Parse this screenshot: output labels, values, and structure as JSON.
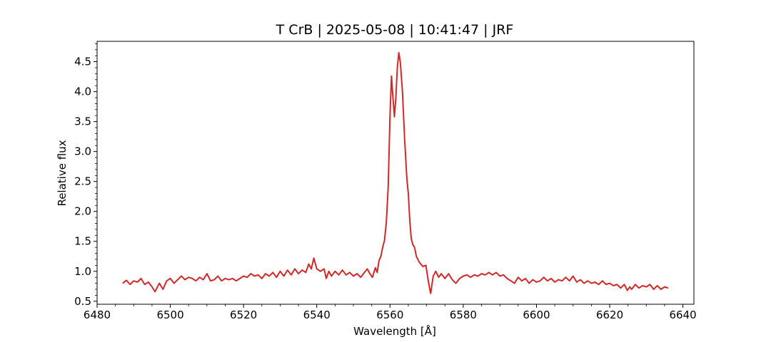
{
  "chart_data": {
    "type": "line",
    "title": "T CrB | 2025-05-08 | 10:41:47 | JRF",
    "xlabel": "Wavelength [Å]",
    "ylabel": "Relative flux",
    "xlim": [
      6480,
      6643
    ],
    "ylim": [
      0.45,
      4.84
    ],
    "xticks": [
      6480,
      6500,
      6520,
      6540,
      6560,
      6580,
      6600,
      6620,
      6640
    ],
    "yticks": [
      0.5,
      1.0,
      1.5,
      2.0,
      2.5,
      3.0,
      3.5,
      4.0,
      4.5
    ],
    "xtick_labels": [
      "6480",
      "6500",
      "6520",
      "6540",
      "6560",
      "6580",
      "6600",
      "6620",
      "6640"
    ],
    "ytick_labels": [
      "0.5",
      "1.0",
      "1.5",
      "2.0",
      "2.5",
      "3.0",
      "3.5",
      "4.0",
      "4.5"
    ],
    "grid": false,
    "series": [
      {
        "color": "#d62728",
        "points": [
          [
            6487.0,
            0.8
          ],
          [
            6488.0,
            0.85
          ],
          [
            6489.0,
            0.78
          ],
          [
            6490.0,
            0.84
          ],
          [
            6491.0,
            0.82
          ],
          [
            6492.0,
            0.88
          ],
          [
            6493.0,
            0.78
          ],
          [
            6494.0,
            0.82
          ],
          [
            6495.0,
            0.74
          ],
          [
            6495.8,
            0.66
          ],
          [
            6497.0,
            0.8
          ],
          [
            6498.0,
            0.7
          ],
          [
            6499.0,
            0.84
          ],
          [
            6500.0,
            0.88
          ],
          [
            6501.0,
            0.8
          ],
          [
            6502.0,
            0.86
          ],
          [
            6503.0,
            0.92
          ],
          [
            6504.0,
            0.86
          ],
          [
            6505.0,
            0.9
          ],
          [
            6506.0,
            0.88
          ],
          [
            6507.0,
            0.84
          ],
          [
            6508.0,
            0.9
          ],
          [
            6509.0,
            0.86
          ],
          [
            6510.0,
            0.96
          ],
          [
            6511.0,
            0.84
          ],
          [
            6512.0,
            0.86
          ],
          [
            6513.0,
            0.92
          ],
          [
            6514.0,
            0.84
          ],
          [
            6515.0,
            0.88
          ],
          [
            6516.0,
            0.86
          ],
          [
            6517.0,
            0.88
          ],
          [
            6518.0,
            0.84
          ],
          [
            6519.0,
            0.88
          ],
          [
            6520.0,
            0.92
          ],
          [
            6521.0,
            0.9
          ],
          [
            6522.0,
            0.96
          ],
          [
            6523.0,
            0.92
          ],
          [
            6524.0,
            0.94
          ],
          [
            6525.0,
            0.88
          ],
          [
            6526.0,
            0.96
          ],
          [
            6527.0,
            0.92
          ],
          [
            6528.0,
            0.98
          ],
          [
            6529.0,
            0.9
          ],
          [
            6530.0,
            1.0
          ],
          [
            6531.0,
            0.92
          ],
          [
            6532.0,
            1.02
          ],
          [
            6533.0,
            0.94
          ],
          [
            6534.0,
            1.04
          ],
          [
            6535.0,
            0.96
          ],
          [
            6536.0,
            1.02
          ],
          [
            6537.0,
            0.98
          ],
          [
            6537.8,
            1.12
          ],
          [
            6538.5,
            1.04
          ],
          [
            6539.2,
            1.22
          ],
          [
            6540.0,
            1.04
          ],
          [
            6541.0,
            1.0
          ],
          [
            6542.0,
            1.04
          ],
          [
            6542.6,
            0.88
          ],
          [
            6543.3,
            1.0
          ],
          [
            6544.0,
            0.92
          ],
          [
            6545.0,
            1.0
          ],
          [
            6546.0,
            0.94
          ],
          [
            6547.0,
            1.02
          ],
          [
            6548.0,
            0.94
          ],
          [
            6549.0,
            0.98
          ],
          [
            6550.0,
            0.92
          ],
          [
            6551.0,
            0.96
          ],
          [
            6552.0,
            0.9
          ],
          [
            6553.0,
            0.98
          ],
          [
            6553.8,
            1.04
          ],
          [
            6554.5,
            0.96
          ],
          [
            6555.2,
            0.9
          ],
          [
            6556.0,
            1.06
          ],
          [
            6556.5,
            0.98
          ],
          [
            6557.0,
            1.18
          ],
          [
            6557.5,
            1.25
          ],
          [
            6558.0,
            1.4
          ],
          [
            6558.5,
            1.52
          ],
          [
            6559.0,
            1.82
          ],
          [
            6559.5,
            2.4
          ],
          [
            6560.0,
            3.6
          ],
          [
            6560.4,
            4.26
          ],
          [
            6560.8,
            3.9
          ],
          [
            6561.2,
            3.58
          ],
          [
            6561.6,
            3.9
          ],
          [
            6562.0,
            4.4
          ],
          [
            6562.4,
            4.65
          ],
          [
            6562.8,
            4.5
          ],
          [
            6563.4,
            4.0
          ],
          [
            6564.0,
            3.2
          ],
          [
            6564.6,
            2.55
          ],
          [
            6565.0,
            2.3
          ],
          [
            6565.4,
            1.85
          ],
          [
            6565.8,
            1.55
          ],
          [
            6566.2,
            1.45
          ],
          [
            6566.7,
            1.4
          ],
          [
            6567.2,
            1.25
          ],
          [
            6568.0,
            1.15
          ],
          [
            6569.0,
            1.08
          ],
          [
            6569.8,
            1.1
          ],
          [
            6570.5,
            0.82
          ],
          [
            6571.1,
            0.63
          ],
          [
            6571.8,
            0.92
          ],
          [
            6572.5,
            1.0
          ],
          [
            6573.3,
            0.9
          ],
          [
            6574.0,
            0.96
          ],
          [
            6575.0,
            0.88
          ],
          [
            6576.0,
            0.96
          ],
          [
            6577.0,
            0.86
          ],
          [
            6578.0,
            0.8
          ],
          [
            6579.0,
            0.88
          ],
          [
            6580.0,
            0.92
          ],
          [
            6581.0,
            0.94
          ],
          [
            6582.0,
            0.9
          ],
          [
            6583.0,
            0.94
          ],
          [
            6584.0,
            0.92
          ],
          [
            6585.0,
            0.96
          ],
          [
            6586.0,
            0.94
          ],
          [
            6587.0,
            0.98
          ],
          [
            6588.0,
            0.94
          ],
          [
            6589.0,
            0.98
          ],
          [
            6590.0,
            0.92
          ],
          [
            6591.0,
            0.94
          ],
          [
            6592.0,
            0.88
          ],
          [
            6593.0,
            0.84
          ],
          [
            6594.0,
            0.8
          ],
          [
            6595.0,
            0.9
          ],
          [
            6596.0,
            0.84
          ],
          [
            6597.0,
            0.88
          ],
          [
            6598.0,
            0.8
          ],
          [
            6599.0,
            0.86
          ],
          [
            6600.0,
            0.82
          ],
          [
            6601.0,
            0.84
          ],
          [
            6602.0,
            0.9
          ],
          [
            6603.0,
            0.84
          ],
          [
            6604.0,
            0.88
          ],
          [
            6605.0,
            0.82
          ],
          [
            6606.0,
            0.86
          ],
          [
            6607.0,
            0.84
          ],
          [
            6608.0,
            0.9
          ],
          [
            6609.0,
            0.84
          ],
          [
            6610.0,
            0.92
          ],
          [
            6611.0,
            0.82
          ],
          [
            6612.0,
            0.86
          ],
          [
            6613.0,
            0.8
          ],
          [
            6614.0,
            0.84
          ],
          [
            6615.0,
            0.8
          ],
          [
            6616.0,
            0.82
          ],
          [
            6617.0,
            0.78
          ],
          [
            6618.0,
            0.84
          ],
          [
            6619.0,
            0.78
          ],
          [
            6620.0,
            0.8
          ],
          [
            6621.0,
            0.76
          ],
          [
            6622.0,
            0.78
          ],
          [
            6623.0,
            0.72
          ],
          [
            6624.0,
            0.78
          ],
          [
            6624.8,
            0.68
          ],
          [
            6625.5,
            0.74
          ],
          [
            6626.0,
            0.7
          ],
          [
            6627.0,
            0.78
          ],
          [
            6628.0,
            0.72
          ],
          [
            6629.0,
            0.76
          ],
          [
            6630.0,
            0.74
          ],
          [
            6631.0,
            0.78
          ],
          [
            6632.0,
            0.7
          ],
          [
            6633.0,
            0.76
          ],
          [
            6634.0,
            0.7
          ],
          [
            6635.0,
            0.74
          ],
          [
            6636.0,
            0.72
          ]
        ]
      }
    ]
  }
}
